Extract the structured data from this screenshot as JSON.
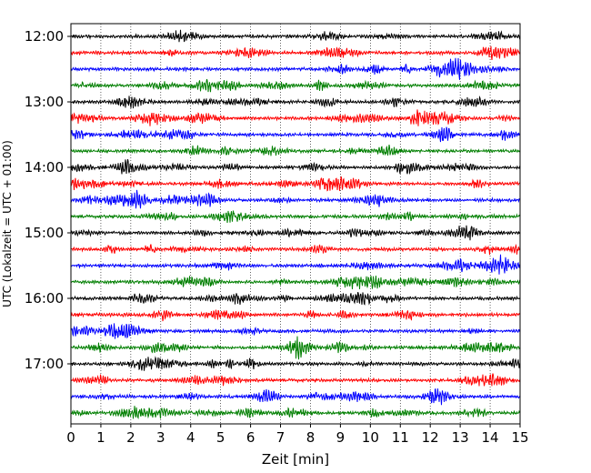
{
  "chart_data": {
    "type": "line",
    "title": "",
    "xlabel": "Zeit  [min]",
    "ylabel": "UTC (Lokalzeit = UTC + 01:00)",
    "xlim": [
      0,
      15
    ],
    "x_ticks": [
      0,
      1,
      2,
      3,
      4,
      5,
      6,
      7,
      8,
      9,
      10,
      11,
      12,
      13,
      14,
      15
    ],
    "x_tick_labels": [
      "0",
      "1",
      "2",
      "3",
      "4",
      "5",
      "6",
      "7",
      "8",
      "9",
      "10",
      "11",
      "12",
      "13",
      "14",
      "15"
    ],
    "y_tick_labels": [
      "12:00",
      "13:00",
      "14:00",
      "15:00",
      "16:00",
      "17:00"
    ],
    "row_interval_minutes": 15,
    "row_start_times": [
      "12:00",
      "12:15",
      "12:30",
      "12:45",
      "13:00",
      "13:15",
      "13:30",
      "13:45",
      "14:00",
      "14:15",
      "14:30",
      "14:45",
      "15:00",
      "15:15",
      "15:30",
      "15:45",
      "16:00",
      "16:15",
      "16:30",
      "16:45",
      "17:00",
      "17:15",
      "17:30",
      "17:45"
    ],
    "trace_colors": [
      "#000000",
      "#ff0000",
      "#0000ff",
      "#007f00"
    ],
    "grid": "vertical dotted at each minute",
    "legend": "none"
  }
}
